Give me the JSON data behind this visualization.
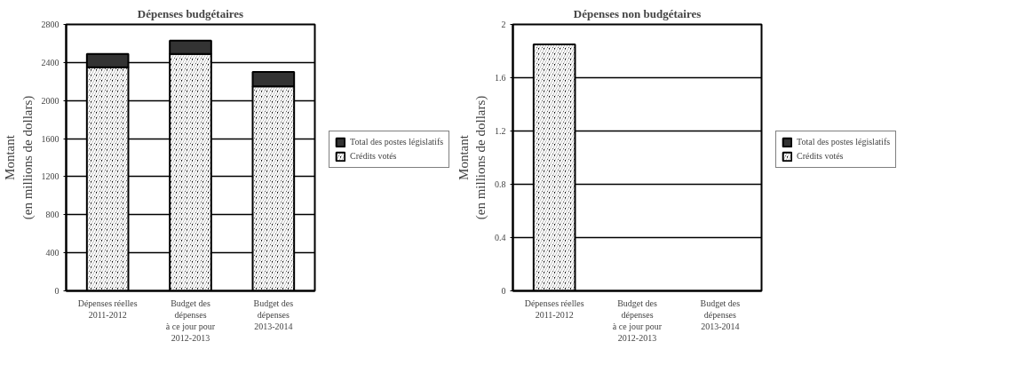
{
  "chart_data": [
    {
      "type": "bar",
      "title": "Dépenses budgétaires",
      "ylabel": "Montant\n(en millions de dollars)",
      "categories": [
        "Dépenses réelles\n2011-2012",
        "Budget des\ndépenses\nà ce jour pour\n2012-2013",
        "Budget des\ndépenses\n2013-2014"
      ],
      "stacked": true,
      "series": [
        {
          "name": "Crédits votés",
          "color": "#000000",
          "values": [
            2350,
            2490,
            2150
          ]
        },
        {
          "name": "Total des postes législatifs",
          "color": "#333333",
          "values": [
            140,
            140,
            150
          ]
        }
      ],
      "ylim": [
        0,
        2800
      ],
      "yticks": [
        0,
        400,
        800,
        1200,
        1600,
        2000,
        2400,
        2800
      ],
      "grid": "y",
      "legend": "right"
    },
    {
      "type": "bar",
      "title": "Dépenses non budgétaires",
      "ylabel": "Montant\n(en millions de dollars)",
      "categories": [
        "Dépenses réelles\n2011-2012",
        "Budget des\ndépenses\nà ce jour pour\n2012-2013",
        "Budget des\ndépenses\n2013-2014"
      ],
      "stacked": true,
      "series": [
        {
          "name": "Crédits votés",
          "color": "#000000",
          "values": [
            1.85,
            null,
            null
          ]
        },
        {
          "name": "Total des postes législatifs",
          "color": "#333333",
          "values": [
            null,
            null,
            null
          ]
        }
      ],
      "ylim": [
        0,
        2
      ],
      "yticks": [
        0,
        0.4,
        0.8,
        1.2,
        1.6,
        2
      ],
      "grid": "y",
      "legend": "right"
    }
  ]
}
